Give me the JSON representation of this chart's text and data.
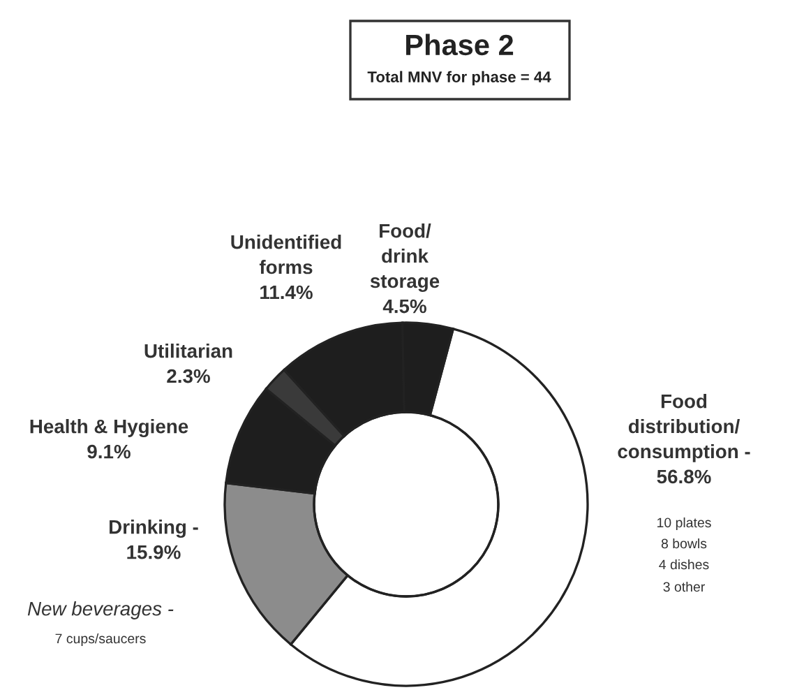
{
  "chart_data": {
    "type": "donut",
    "title": "Phase 2",
    "subtitle": "Total MNV for phase = 44",
    "categories": [
      "Food\ndistribution/\nconsumption -",
      "Drinking -",
      "Health & Hygiene",
      "Utilitarian",
      "Unidentified\nforms",
      "Food/\ndrink\nstorage"
    ],
    "values": [
      56.8,
      15.9,
      9.1,
      2.3,
      11.4,
      4.5
    ],
    "value_labels": [
      "56.8%",
      "15.9%",
      "9.1%",
      "2.3%",
      "11.4%",
      "4.5%"
    ],
    "colors": [
      "#ffffff",
      "#8c8c8c",
      "#1e1e1e",
      "#3a3a3a",
      "#1e1e1e",
      "#1e1e1e"
    ],
    "annotations": [
      "10 plates",
      "8 bowls",
      "4 dishes",
      "3 other",
      "New beverages -",
      "7 cups/saucers"
    ]
  }
}
